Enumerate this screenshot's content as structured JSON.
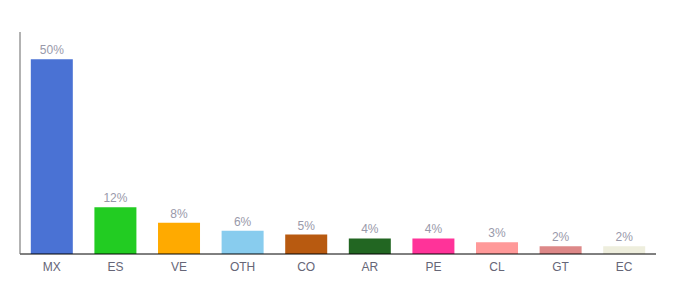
{
  "chart_data": {
    "type": "bar",
    "categories": [
      "MX",
      "ES",
      "VE",
      "OTH",
      "CO",
      "AR",
      "PE",
      "CL",
      "GT",
      "EC"
    ],
    "values": [
      50,
      12,
      8,
      6,
      5,
      4,
      4,
      3,
      2,
      2
    ],
    "value_labels": [
      "50%",
      "12%",
      "8%",
      "6%",
      "5%",
      "4%",
      "4%",
      "3%",
      "2%",
      "2%"
    ],
    "colors": [
      "#4a72d4",
      "#22cc22",
      "#ffaa00",
      "#88ccee",
      "#b85a10",
      "#226622",
      "#ff3399",
      "#ff9999",
      "#dd8888",
      "#eeeedd"
    ],
    "ylim": [
      0,
      57
    ],
    "data_labels": true,
    "tick_labels": "x"
  }
}
